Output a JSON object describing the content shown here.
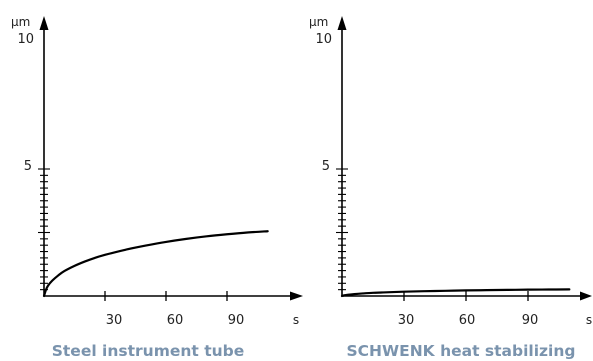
{
  "colors": {
    "axis": "#000000",
    "curve": "#000000",
    "text": "#222222",
    "caption": "#7a93ad"
  },
  "chart_data": [
    {
      "type": "line",
      "title": "Steel instrument tube",
      "xlabel": "s",
      "ylabel": "µm",
      "xlim": [
        0,
        110
      ],
      "ylim": [
        0,
        11
      ],
      "xticks": [
        30,
        60,
        90
      ],
      "yticks": [
        5,
        10
      ],
      "ytick_minor_step": 0.5,
      "grid": false,
      "series": [
        {
          "x": [
            0,
            1,
            2,
            4,
            7,
            10,
            15,
            20,
            25,
            30,
            40,
            50,
            60,
            70,
            80,
            90,
            100,
            110
          ],
          "values": [
            0,
            0.5,
            0.82,
            1.2,
            1.62,
            1.96,
            2.37,
            2.71,
            3.0,
            3.24,
            3.64,
            3.97,
            4.26,
            4.5,
            4.7,
            4.86,
            5.0,
            5.1
          ]
        }
      ]
    },
    {
      "type": "line",
      "title": "SCHWENK heat stabilizing",
      "xlabel": "s",
      "ylabel": "µm",
      "xlim": [
        0,
        110
      ],
      "ylim": [
        0,
        11
      ],
      "xticks": [
        30,
        60,
        90
      ],
      "yticks": [
        5,
        10
      ],
      "ytick_minor_step": 0.5,
      "grid": false,
      "series": [
        {
          "x": [
            0,
            1,
            3,
            6,
            10,
            15,
            20,
            30,
            40,
            50,
            60,
            70,
            80,
            90,
            100,
            110
          ],
          "values": [
            0,
            0.05,
            0.1,
            0.15,
            0.2,
            0.25,
            0.28,
            0.34,
            0.38,
            0.41,
            0.44,
            0.46,
            0.48,
            0.5,
            0.51,
            0.52
          ]
        }
      ]
    }
  ]
}
